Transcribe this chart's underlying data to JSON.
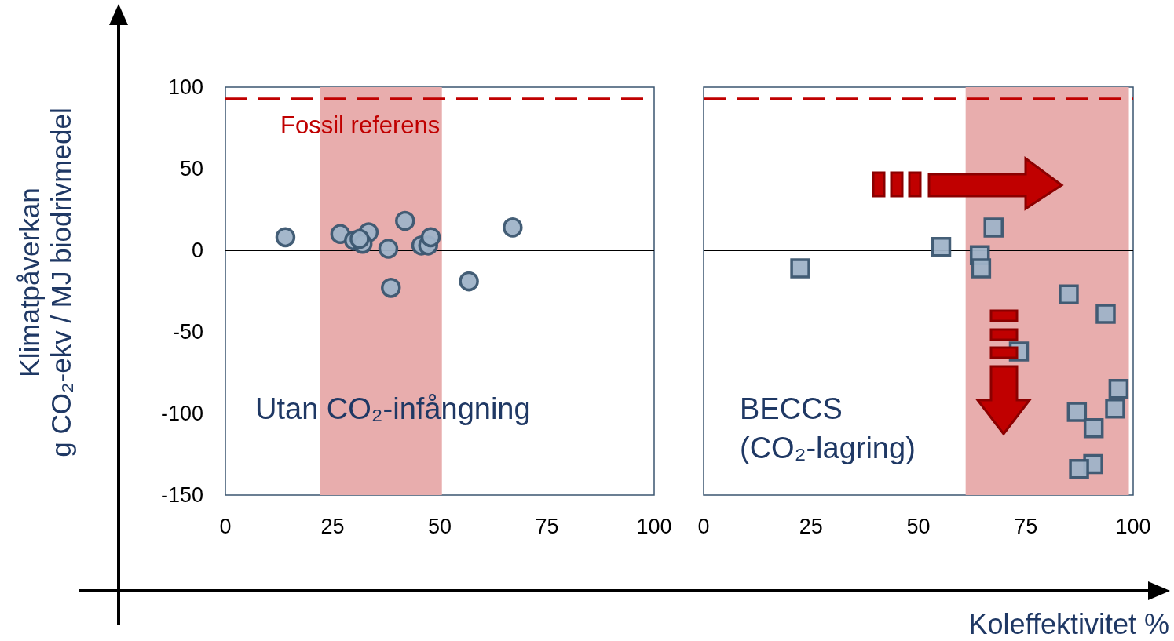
{
  "chart_data": [
    {
      "type": "scatter",
      "ylabel": "Klimatpåverkan\ng CO₂-ekv / MJ biodrivmedel",
      "marker": "circle",
      "grid": false,
      "xlim": [
        0,
        100
      ],
      "xticks": [
        0,
        25,
        50,
        75,
        100
      ],
      "ylim": [
        -150,
        100
      ],
      "yticks": [
        -150,
        -100,
        -50,
        0,
        50,
        100
      ],
      "series": [
        {
          "color": "#9fb3c8",
          "x": [
            14,
            26.8,
            33.4,
            30,
            32,
            31.3,
            41.9,
            38,
            38.6,
            45.7,
            47.3,
            47.9,
            67,
            56.8
          ],
          "values": [
            8,
            10,
            11,
            6,
            4,
            7,
            18,
            1,
            -23,
            3,
            3,
            8,
            14,
            -19
          ]
        }
      ],
      "bands": [
        {
          "axis": "x",
          "from": 22,
          "to": 50.5,
          "color": "#e8adad"
        }
      ],
      "ref_lines": [
        {
          "axis": "y",
          "value": 93,
          "label": "Fossil referens",
          "color": "#c00000",
          "line_style": "dashed"
        },
        {
          "axis": "y",
          "value": 0,
          "color": "#000000",
          "line_style": "solid"
        }
      ],
      "annotations": [
        "Utan CO₂-infångning"
      ]
    },
    {
      "type": "scatter",
      "xlabel": "Koleffektivitet %",
      "marker": "square",
      "grid": false,
      "tick_labels": "x",
      "xlim": [
        0,
        100
      ],
      "xticks": [
        0,
        25,
        50,
        75,
        100
      ],
      "ylim": [
        -150,
        100
      ],
      "yticks": [
        -150,
        -100,
        -50,
        0,
        50,
        100
      ],
      "series": [
        {
          "color": "#9fb3c8",
          "x": [
            22.5,
            55.3,
            67.5,
            64.3,
            64.6,
            85,
            93.6,
            73.4,
            96.6,
            86.9,
            95.8,
            90.8,
            90.7,
            87.4
          ],
          "values": [
            -11,
            2,
            14,
            -3,
            -11,
            -27,
            -39,
            -62,
            -85,
            -99,
            -97,
            -109,
            -131,
            -134
          ]
        }
      ],
      "bands": [
        {
          "axis": "x",
          "from": 61,
          "to": 99,
          "color": "#e8adad"
        }
      ],
      "ref_lines": [
        {
          "axis": "y",
          "value": 93,
          "color": "#c00000",
          "line_style": "dashed"
        },
        {
          "axis": "y",
          "value": 0,
          "color": "#000000",
          "line_style": "solid"
        }
      ],
      "annotations": [
        "BECCS\n(CO₂-lagring)"
      ]
    }
  ]
}
